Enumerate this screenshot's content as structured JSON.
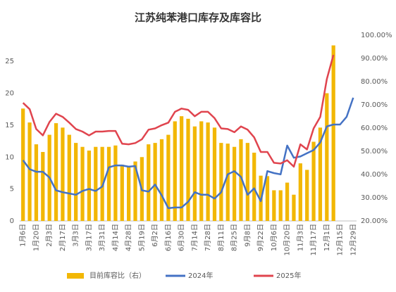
{
  "chart_data": {
    "type": "bar_line",
    "title": "江苏纯苯港口库存及库容比",
    "categories": [
      "1月6日",
      null,
      "1月20日",
      null,
      "2月3日",
      null,
      "2月17日",
      null,
      "3月3日",
      null,
      "3月17日",
      null,
      "3月31日",
      null,
      "4月14日",
      null,
      "4月28日",
      null,
      "5月19日",
      null,
      "6月2日",
      null,
      "6月16日",
      null,
      "6月30日",
      null,
      "7月14日",
      null,
      "7月28日",
      null,
      "8月11日",
      null,
      "8月25日",
      null,
      "9月8日",
      null,
      "9月22日",
      null,
      "10月6日",
      null,
      "10月20日",
      null,
      "11月3日",
      null,
      "11月17日",
      null,
      "12月1日",
      null,
      "12月15日",
      null,
      "12月29日"
    ],
    "series": [
      {
        "name": "目前库容比（右）",
        "kind": "bar",
        "axis": "y2",
        "color": "#f2b705",
        "values": [
          68.4,
          62.4,
          53.0,
          49.7,
          57.1,
          62.1,
          60.2,
          57.1,
          53.6,
          51.9,
          50.3,
          51.9,
          51.9,
          51.9,
          52.5,
          44.2,
          43.7,
          45.6,
          47.5,
          53.0,
          53.6,
          55.2,
          57.1,
          62.9,
          65.1,
          64.0,
          60.7,
          62.9,
          62.4,
          60.2,
          53.6,
          53.3,
          51.9,
          55.2,
          53.6,
          49.4,
          39.5,
          39.3,
          33.2,
          33.2,
          36.5,
          31.3,
          44.8,
          42.0,
          54.1,
          60.2,
          75.0,
          95.6,
          null,
          null,
          null
        ]
      },
      {
        "name": "2024年",
        "kind": "line",
        "color": "#4472c4",
        "values": [
          9.5,
          8.1,
          7.7,
          7.7,
          6.8,
          4.8,
          4.5,
          4.3,
          4.1,
          4.7,
          5.0,
          4.7,
          5.4,
          8.4,
          8.7,
          8.7,
          8.5,
          8.6,
          4.8,
          4.6,
          5.7,
          4.0,
          2.0,
          2.1,
          2.1,
          3.0,
          4.5,
          4.1,
          4.1,
          3.5,
          4.5,
          7.3,
          7.8,
          6.9,
          4.1,
          5.1,
          3.1,
          7.8,
          7.5,
          7.3,
          11.8,
          9.9,
          10.1,
          10.6,
          11.1,
          12.3,
          14.8,
          15.1,
          15.1,
          16.3,
          19.3
        ]
      },
      {
        "name": "2025年",
        "kind": "line",
        "color": "#e0444e",
        "values": [
          18.5,
          17.5,
          14.4,
          13.4,
          15.5,
          16.8,
          16.3,
          15.4,
          14.4,
          14.0,
          13.4,
          14.0,
          14.0,
          14.1,
          14.1,
          12.1,
          12.0,
          12.2,
          12.8,
          14.3,
          14.5,
          15.0,
          15.4,
          17.1,
          17.6,
          17.4,
          16.4,
          17.1,
          17.1,
          16.1,
          14.5,
          14.4,
          13.9,
          14.8,
          14.3,
          13.1,
          10.8,
          10.8,
          9.1,
          9.0,
          9.5,
          8.5,
          12.0,
          11.2,
          14.5,
          16.3,
          22.2,
          26.0,
          null,
          null,
          null
        ]
      }
    ],
    "ylim": [
      0,
      29.1
    ],
    "yticks": [
      0,
      5,
      10,
      15,
      20,
      25
    ],
    "y2lim": [
      20,
      100
    ],
    "y2ticks": [
      {
        "value": 20,
        "label": "20.00%"
      },
      {
        "value": 30,
        "label": "30.00%"
      },
      {
        "value": 40,
        "label": "40.00%"
      },
      {
        "value": 50,
        "label": "50.00%"
      },
      {
        "value": 60,
        "label": "60.00%"
      },
      {
        "value": 70,
        "label": "70.00%"
      },
      {
        "value": 80,
        "label": "80.00%"
      },
      {
        "value": 90,
        "label": "90.00%"
      },
      {
        "value": 100,
        "label": "100.00%"
      }
    ],
    "grid": false,
    "legend": "bottom"
  }
}
